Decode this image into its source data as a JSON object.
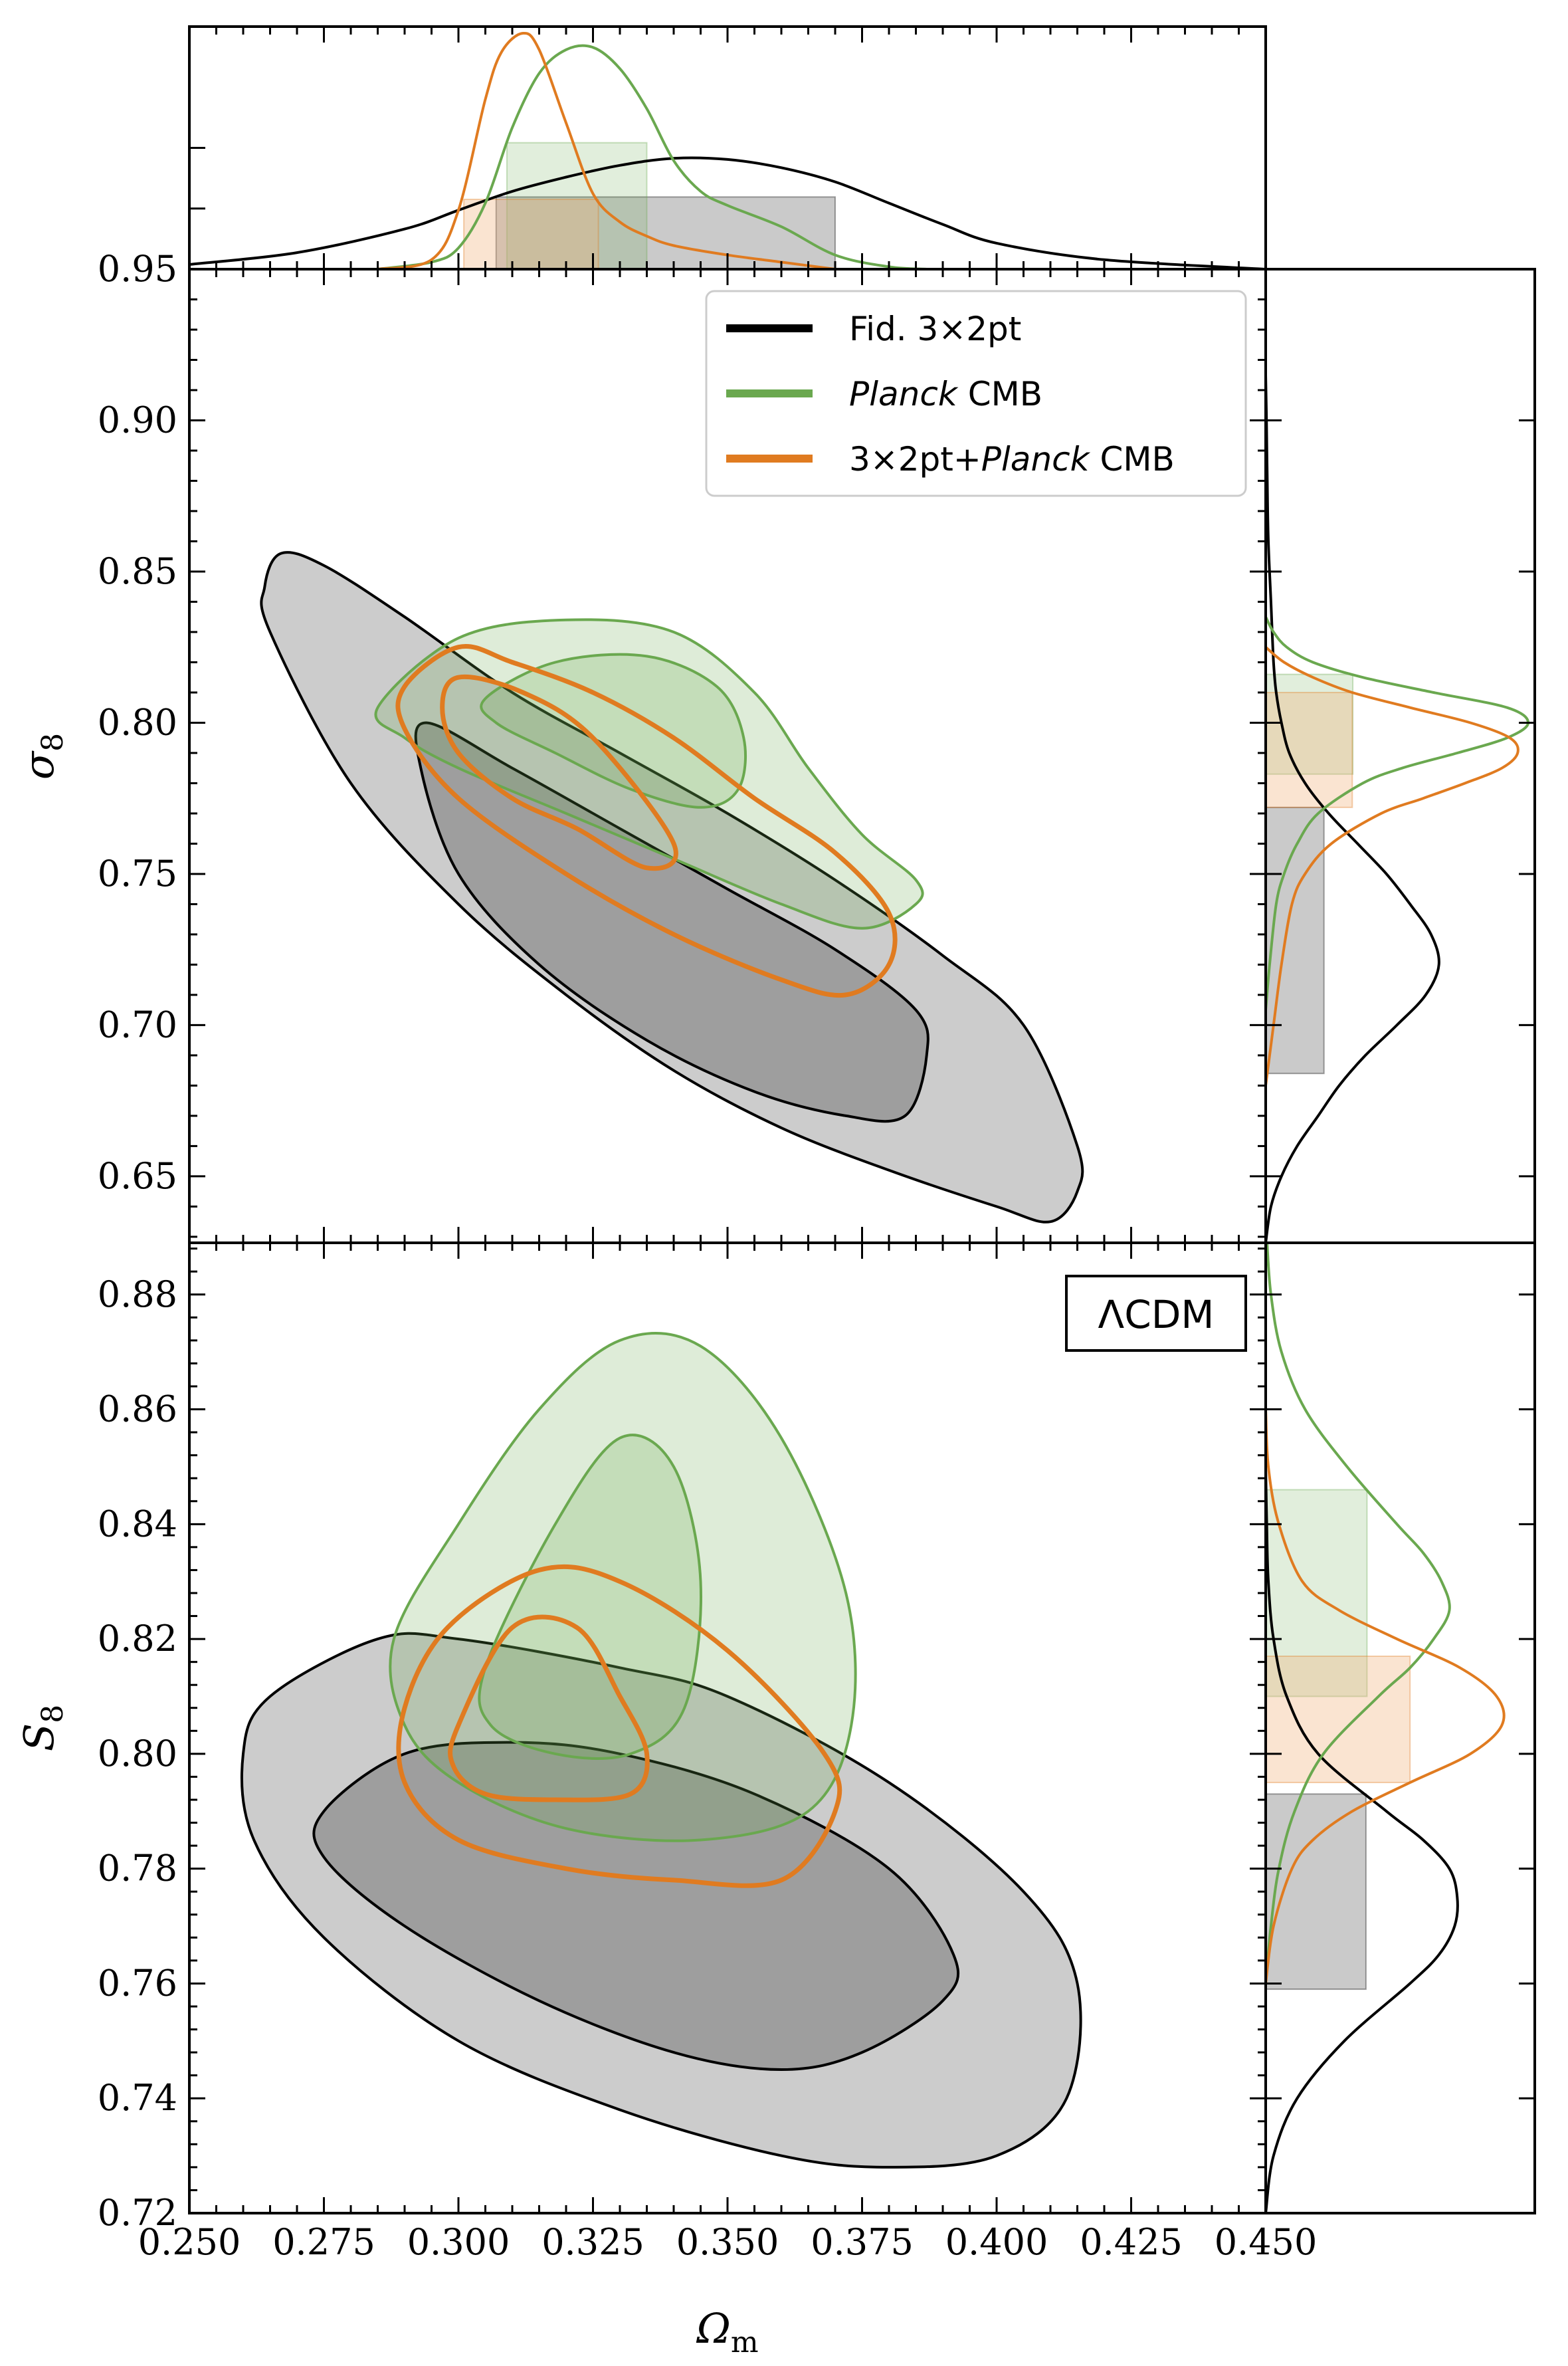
{
  "chart_data": {
    "type": "contour",
    "colors": {
      "fid": "#000000",
      "fid_fill_outer": "#cccccc",
      "fid_fill_inner": "#9e9e9e",
      "planck": "#6aa84f",
      "planck_fill": "#6aa84f",
      "combined": "#e07b20",
      "combined_fill": "#f2b27a"
    },
    "legend": {
      "placement": "upper-right of middle panel",
      "entries": [
        {
          "id": "fid",
          "prefix": "Fid. 3×2pt",
          "italic": "",
          "suffix": ""
        },
        {
          "id": "planck",
          "prefix": "",
          "italic": "Planck",
          "suffix": " CMB"
        },
        {
          "id": "combined",
          "prefix": "3×2pt+",
          "italic": "Planck",
          "suffix": " CMB"
        }
      ]
    },
    "annotation": "ΛCDM",
    "x_axis": {
      "label": "Ωm",
      "range": [
        0.25,
        0.45
      ],
      "ticks": [
        0.25,
        0.275,
        0.3,
        0.325,
        0.35,
        0.375,
        0.4,
        0.425,
        0.45
      ],
      "tick_labels": [
        "0.250",
        "0.275",
        "0.300",
        "0.325",
        "0.350",
        "0.375",
        "0.400",
        "0.425",
        "0.450"
      ]
    },
    "sigma8_axis": {
      "label": "σ8",
      "range": [
        0.628,
        0.95
      ],
      "ticks": [
        0.65,
        0.7,
        0.75,
        0.8,
        0.85,
        0.9,
        0.95
      ],
      "tick_labels": [
        "0.65",
        "0.70",
        "0.75",
        "0.80",
        "0.85",
        "0.90",
        "0.95"
      ]
    },
    "S8_axis": {
      "label": "S8",
      "range": [
        0.72,
        0.889
      ],
      "ticks": [
        0.72,
        0.74,
        0.76,
        0.78,
        0.8,
        0.82,
        0.84,
        0.86,
        0.88
      ],
      "tick_labels": [
        "0.72",
        "0.74",
        "0.76",
        "0.78",
        "0.80",
        "0.82",
        "0.84",
        "0.86",
        "0.88"
      ]
    },
    "om_marginal": {
      "fid": {
        "x": [
          0.25,
          0.27,
          0.29,
          0.3,
          0.31,
          0.32,
          0.33,
          0.34,
          0.35,
          0.36,
          0.37,
          0.38,
          0.39,
          0.4,
          0.42,
          0.45
        ],
        "y": [
          0.02,
          0.07,
          0.17,
          0.25,
          0.33,
          0.39,
          0.44,
          0.47,
          0.465,
          0.43,
          0.37,
          0.28,
          0.19,
          0.11,
          0.04,
          0.0
        ],
        "band68": [
          0.307,
          0.37
        ]
      },
      "planck": {
        "x": [
          0.285,
          0.295,
          0.3,
          0.305,
          0.31,
          0.315,
          0.32,
          0.325,
          0.33,
          0.335,
          0.34,
          0.345,
          0.35,
          0.36,
          0.37,
          0.38,
          0.387
        ],
        "y": [
          0.0,
          0.03,
          0.09,
          0.28,
          0.6,
          0.83,
          0.93,
          0.94,
          0.85,
          0.68,
          0.46,
          0.33,
          0.27,
          0.18,
          0.06,
          0.01,
          0.0
        ],
        "band68": [
          0.309,
          0.335
        ]
      },
      "combined": {
        "x": [
          0.285,
          0.295,
          0.3,
          0.305,
          0.308,
          0.312,
          0.315,
          0.32,
          0.325,
          0.33,
          0.335,
          0.34,
          0.35,
          0.36,
          0.37
        ],
        "y": [
          0.0,
          0.04,
          0.25,
          0.72,
          0.92,
          1.0,
          0.93,
          0.62,
          0.32,
          0.2,
          0.14,
          0.1,
          0.06,
          0.03,
          0.0
        ],
        "band68": [
          0.301,
          0.326
        ]
      }
    },
    "sigma8_marginal": {
      "fid": {
        "s8": [
          0.628,
          0.64,
          0.65,
          0.66,
          0.67,
          0.68,
          0.69,
          0.7,
          0.71,
          0.72,
          0.73,
          0.74,
          0.75,
          0.76,
          0.77,
          0.78,
          0.79,
          0.8,
          0.81,
          0.82,
          0.84,
          0.86,
          0.88,
          0.9,
          0.915
        ],
        "d": [
          0.0,
          0.02,
          0.06,
          0.12,
          0.2,
          0.28,
          0.38,
          0.5,
          0.61,
          0.66,
          0.63,
          0.55,
          0.46,
          0.35,
          0.24,
          0.15,
          0.09,
          0.06,
          0.04,
          0.03,
          0.02,
          0.01,
          0.006,
          0.003,
          0.0
        ],
        "band68": [
          0.684,
          0.772
        ]
      },
      "planck": {
        "s8": [
          0.705,
          0.72,
          0.74,
          0.75,
          0.76,
          0.77,
          0.78,
          0.785,
          0.79,
          0.795,
          0.8,
          0.805,
          0.81,
          0.815,
          0.82,
          0.825,
          0.83,
          0.835
        ],
        "d": [
          0.0,
          0.015,
          0.04,
          0.07,
          0.12,
          0.2,
          0.37,
          0.52,
          0.73,
          0.92,
          1.0,
          0.92,
          0.64,
          0.37,
          0.18,
          0.08,
          0.03,
          0.0
        ],
        "band68": [
          0.783,
          0.816
        ]
      },
      "combined": {
        "s8": [
          0.68,
          0.7,
          0.72,
          0.74,
          0.75,
          0.76,
          0.77,
          0.775,
          0.78,
          0.785,
          0.79,
          0.795,
          0.8,
          0.805,
          0.81,
          0.815,
          0.82,
          0.825
        ],
        "d": [
          0.0,
          0.03,
          0.06,
          0.1,
          0.15,
          0.25,
          0.44,
          0.6,
          0.76,
          0.9,
          0.96,
          0.93,
          0.78,
          0.55,
          0.33,
          0.18,
          0.07,
          0.0
        ],
        "band68": [
          0.772,
          0.81
        ]
      }
    },
    "S8_marginal": {
      "fid": {
        "s8": [
          0.72,
          0.73,
          0.74,
          0.75,
          0.76,
          0.765,
          0.77,
          0.775,
          0.78,
          0.785,
          0.79,
          0.8,
          0.81,
          0.82,
          0.83,
          0.84,
          0.85
        ],
        "d": [
          0.0,
          0.03,
          0.12,
          0.3,
          0.55,
          0.66,
          0.72,
          0.73,
          0.7,
          0.6,
          0.46,
          0.2,
          0.08,
          0.03,
          0.01,
          0.004,
          0.0
        ],
        "band68": [
          0.759,
          0.793
        ]
      },
      "planck": {
        "s8": [
          0.76,
          0.77,
          0.78,
          0.79,
          0.8,
          0.81,
          0.815,
          0.82,
          0.825,
          0.83,
          0.835,
          0.84,
          0.85,
          0.86,
          0.87,
          0.88,
          0.889
        ],
        "d": [
          0.0,
          0.02,
          0.05,
          0.11,
          0.22,
          0.43,
          0.55,
          0.64,
          0.7,
          0.67,
          0.6,
          0.5,
          0.31,
          0.15,
          0.06,
          0.02,
          0.005
        ],
        "band68": [
          0.81,
          0.846
        ]
      },
      "combined": {
        "s8": [
          0.76,
          0.77,
          0.78,
          0.785,
          0.79,
          0.795,
          0.8,
          0.805,
          0.81,
          0.815,
          0.82,
          0.825,
          0.83,
          0.84,
          0.85,
          0.86
        ],
        "d": [
          0.0,
          0.03,
          0.1,
          0.18,
          0.33,
          0.55,
          0.78,
          0.9,
          0.88,
          0.74,
          0.5,
          0.28,
          0.14,
          0.05,
          0.01,
          0.0
        ],
        "band68": [
          0.795,
          0.817
        ]
      }
    },
    "contours_sigma8": {
      "fid_95": [
        [
          0.267,
          0.856
        ],
        [
          0.275,
          0.852
        ],
        [
          0.29,
          0.835
        ],
        [
          0.31,
          0.81
        ],
        [
          0.33,
          0.79
        ],
        [
          0.35,
          0.77
        ],
        [
          0.37,
          0.748
        ],
        [
          0.39,
          0.723
        ],
        [
          0.405,
          0.7
        ],
        [
          0.415,
          0.66
        ],
        [
          0.415,
          0.645
        ],
        [
          0.41,
          0.635
        ],
        [
          0.4,
          0.64
        ],
        [
          0.38,
          0.652
        ],
        [
          0.36,
          0.666
        ],
        [
          0.34,
          0.685
        ],
        [
          0.32,
          0.71
        ],
        [
          0.3,
          0.74
        ],
        [
          0.28,
          0.78
        ],
        [
          0.265,
          0.83
        ],
        [
          0.264,
          0.845
        ]
      ],
      "fid_68": [
        [
          0.294,
          0.8
        ],
        [
          0.31,
          0.785
        ],
        [
          0.33,
          0.765
        ],
        [
          0.35,
          0.745
        ],
        [
          0.37,
          0.725
        ],
        [
          0.385,
          0.705
        ],
        [
          0.387,
          0.69
        ],
        [
          0.383,
          0.67
        ],
        [
          0.372,
          0.67
        ],
        [
          0.355,
          0.678
        ],
        [
          0.335,
          0.695
        ],
        [
          0.315,
          0.72
        ],
        [
          0.3,
          0.75
        ],
        [
          0.293,
          0.785
        ]
      ],
      "planck_95": [
        [
          0.285,
          0.805
        ],
        [
          0.3,
          0.828
        ],
        [
          0.32,
          0.834
        ],
        [
          0.34,
          0.83
        ],
        [
          0.355,
          0.81
        ],
        [
          0.365,
          0.785
        ],
        [
          0.375,
          0.763
        ],
        [
          0.385,
          0.748
        ],
        [
          0.385,
          0.74
        ],
        [
          0.375,
          0.732
        ],
        [
          0.36,
          0.74
        ],
        [
          0.34,
          0.755
        ],
        [
          0.32,
          0.77
        ],
        [
          0.3,
          0.785
        ],
        [
          0.29,
          0.795
        ]
      ],
      "planck_68": [
        [
          0.305,
          0.808
        ],
        [
          0.318,
          0.82
        ],
        [
          0.335,
          0.822
        ],
        [
          0.348,
          0.812
        ],
        [
          0.353,
          0.795
        ],
        [
          0.352,
          0.778
        ],
        [
          0.345,
          0.772
        ],
        [
          0.332,
          0.778
        ],
        [
          0.318,
          0.79
        ],
        [
          0.307,
          0.8
        ]
      ],
      "comb_95": [
        [
          0.29,
          0.812
        ],
        [
          0.3,
          0.825
        ],
        [
          0.31,
          0.82
        ],
        [
          0.325,
          0.81
        ],
        [
          0.34,
          0.795
        ],
        [
          0.355,
          0.775
        ],
        [
          0.37,
          0.757
        ],
        [
          0.38,
          0.737
        ],
        [
          0.38,
          0.72
        ],
        [
          0.372,
          0.71
        ],
        [
          0.36,
          0.715
        ],
        [
          0.34,
          0.73
        ],
        [
          0.32,
          0.75
        ],
        [
          0.3,
          0.775
        ],
        [
          0.29,
          0.798
        ]
      ],
      "comb_68": [
        [
          0.3,
          0.815
        ],
        [
          0.312,
          0.81
        ],
        [
          0.325,
          0.795
        ],
        [
          0.34,
          0.76
        ],
        [
          0.335,
          0.752
        ],
        [
          0.322,
          0.765
        ],
        [
          0.31,
          0.775
        ],
        [
          0.3,
          0.79
        ],
        [
          0.297,
          0.805
        ]
      ]
    },
    "contours_S8": {
      "fid_95": [
        [
          0.265,
          0.81
        ],
        [
          0.285,
          0.82
        ],
        [
          0.3,
          0.82
        ],
        [
          0.33,
          0.815
        ],
        [
          0.35,
          0.81
        ],
        [
          0.38,
          0.795
        ],
        [
          0.405,
          0.776
        ],
        [
          0.415,
          0.76
        ],
        [
          0.413,
          0.74
        ],
        [
          0.4,
          0.73
        ],
        [
          0.38,
          0.728
        ],
        [
          0.36,
          0.73
        ],
        [
          0.33,
          0.738
        ],
        [
          0.3,
          0.75
        ],
        [
          0.275,
          0.768
        ],
        [
          0.262,
          0.785
        ],
        [
          0.26,
          0.8
        ]
      ],
      "fid_68": [
        [
          0.275,
          0.79
        ],
        [
          0.29,
          0.8
        ],
        [
          0.31,
          0.802
        ],
        [
          0.33,
          0.8
        ],
        [
          0.355,
          0.793
        ],
        [
          0.38,
          0.78
        ],
        [
          0.392,
          0.765
        ],
        [
          0.39,
          0.757
        ],
        [
          0.375,
          0.748
        ],
        [
          0.36,
          0.745
        ],
        [
          0.34,
          0.748
        ],
        [
          0.315,
          0.757
        ],
        [
          0.29,
          0.77
        ],
        [
          0.275,
          0.782
        ]
      ],
      "planck_95": [
        [
          0.288,
          0.82
        ],
        [
          0.3,
          0.84
        ],
        [
          0.315,
          0.86
        ],
        [
          0.33,
          0.872
        ],
        [
          0.345,
          0.871
        ],
        [
          0.36,
          0.855
        ],
        [
          0.372,
          0.828
        ],
        [
          0.373,
          0.805
        ],
        [
          0.365,
          0.79
        ],
        [
          0.345,
          0.785
        ],
        [
          0.32,
          0.787
        ],
        [
          0.3,
          0.795
        ],
        [
          0.29,
          0.805
        ]
      ],
      "planck_68": [
        [
          0.305,
          0.815
        ],
        [
          0.318,
          0.84
        ],
        [
          0.33,
          0.855
        ],
        [
          0.34,
          0.85
        ],
        [
          0.345,
          0.83
        ],
        [
          0.342,
          0.808
        ],
        [
          0.332,
          0.8
        ],
        [
          0.318,
          0.8
        ],
        [
          0.306,
          0.805
        ]
      ],
      "comb_95": [
        [
          0.29,
          0.808
        ],
        [
          0.298,
          0.822
        ],
        [
          0.315,
          0.832
        ],
        [
          0.33,
          0.83
        ],
        [
          0.35,
          0.818
        ],
        [
          0.368,
          0.8
        ],
        [
          0.37,
          0.79
        ],
        [
          0.36,
          0.778
        ],
        [
          0.34,
          0.778
        ],
        [
          0.32,
          0.78
        ],
        [
          0.3,
          0.785
        ],
        [
          0.29,
          0.795
        ]
      ],
      "comb_68": [
        [
          0.3,
          0.805
        ],
        [
          0.31,
          0.822
        ],
        [
          0.322,
          0.822
        ],
        [
          0.33,
          0.81
        ],
        [
          0.335,
          0.8
        ],
        [
          0.332,
          0.793
        ],
        [
          0.318,
          0.792
        ],
        [
          0.305,
          0.793
        ],
        [
          0.299,
          0.798
        ]
      ]
    }
  }
}
